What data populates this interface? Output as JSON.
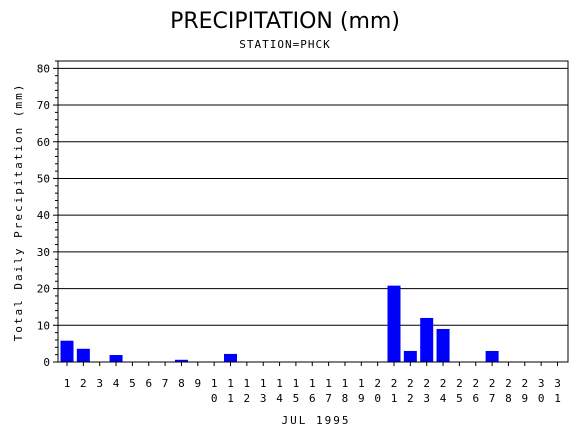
{
  "chart_data": {
    "type": "bar",
    "title": "PRECIPITATION (mm)",
    "subtitle": "STATION=PHCK",
    "xlabel": "JUL 1995",
    "ylabel": "Total Daily Precipitation (mm)",
    "ylim": [
      0,
      82
    ],
    "yticks": [
      0,
      10,
      20,
      30,
      40,
      50,
      60,
      70,
      80
    ],
    "grid": true,
    "bar_color": "#0000ff",
    "categories": [
      "1",
      "2",
      "3",
      "4",
      "5",
      "6",
      "7",
      "8",
      "9",
      "10",
      "11",
      "12",
      "13",
      "14",
      "15",
      "16",
      "17",
      "18",
      "19",
      "20",
      "21",
      "22",
      "23",
      "24",
      "25",
      "26",
      "27",
      "28",
      "29",
      "30",
      "31"
    ],
    "values": [
      5.8,
      3.6,
      0,
      1.9,
      0,
      0,
      0,
      0.6,
      0,
      0,
      2.2,
      0,
      0,
      0,
      0,
      0,
      0,
      0,
      0,
      0,
      20.8,
      3.0,
      12.0,
      9.0,
      0,
      0,
      3.0,
      0,
      0,
      0,
      0
    ]
  }
}
